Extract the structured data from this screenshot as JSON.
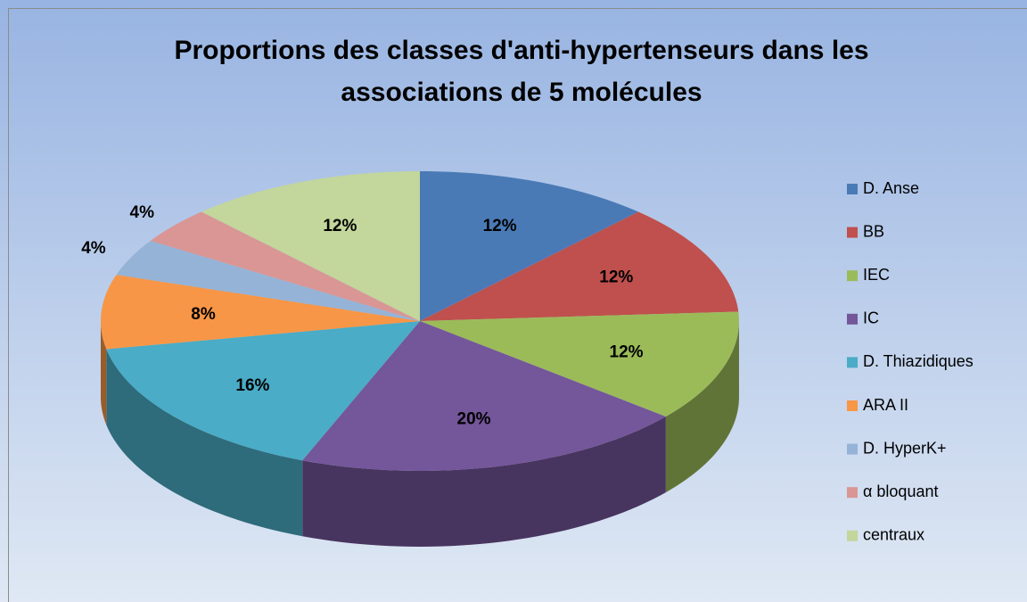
{
  "chart_data": {
    "type": "pie",
    "title": [
      "Proportions des classes d'anti-hypertenseurs dans les",
      "associations de 5 molécules"
    ],
    "categories": [
      "D. Anse",
      "BB",
      "IEC",
      "IC",
      "D. Thiazidiques",
      "ARA II",
      "D. HyperK+",
      "α bloquant",
      "centraux"
    ],
    "values": [
      12,
      12,
      12,
      20,
      16,
      8,
      4,
      4,
      12
    ],
    "value_labels": [
      "12%",
      "12%",
      "12%",
      "20%",
      "16%",
      "8%",
      "4%",
      "4%",
      "12%"
    ],
    "colors": [
      "#4a7ab5",
      "#c0504d",
      "#9bbb59",
      "#74569a",
      "#4aacc6",
      "#f79646",
      "#95b3d7",
      "#d99694",
      "#c3d69b"
    ],
    "legend": "right"
  }
}
